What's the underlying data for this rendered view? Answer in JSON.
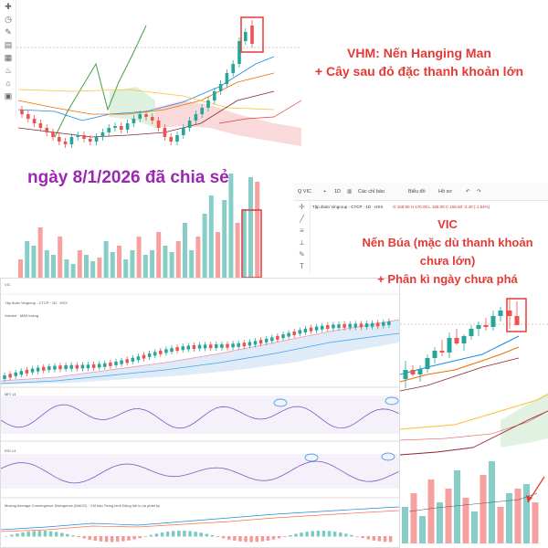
{
  "vhm_panel": {
    "toolbar_icons": [
      "plus-icon",
      "clock-icon",
      "pen-icon",
      "ruler-icon",
      "text-icon",
      "brush-icon",
      "magnet-icon",
      "trash-icon"
    ]
  },
  "annotations": {
    "vhm_title": "VHM: Nến Hanging Man",
    "vhm_subtitle": "+ Cây sau đỏ đặc thanh khoản lớn",
    "date_note": "ngày 8/1/2026 đã chia sẻ",
    "vic_title": "VIC",
    "vic_line1": "Nến Búa (mặc dù thanh khoản chưa lớn)",
    "vic_line2": "+ Phân kì ngày chưa phá"
  },
  "vic_panel": {
    "symbol": "VIC",
    "toolbar": {
      "symbol_button": "Q VIC",
      "indicator_button": "Các chỉ báo",
      "chart_type_button": "Biểu đồ",
      "template_button": "Hồ sơ"
    },
    "legend": "Tập đoàn Vingroup - CTCP · 1D · HSX",
    "ohlc_text": "O 169.50 H 170.00 L 155.00 C 155.60 -2.40 (-1.54%)"
  },
  "big_panel": {
    "header": "Tập đoàn Vingroup - CTCP · 1D · HSX",
    "volume_label": "Volume · MA5 tượng",
    "mfi_label": "MFI 14",
    "rsi_label": "RSI 14",
    "macd_label": "Moving Average Convergence Divergence (MACD) · Chỉ báo Trung bình Động hội tụ và phân kỳ"
  },
  "colors": {
    "up": "#26a69a",
    "down": "#ef5350",
    "annotation_red": "#e53935",
    "annotation_purple": "#9c27b0",
    "highlight_box": "#e53935",
    "cloud": "#f5c6c6",
    "indicator": "#7e57c2"
  }
}
